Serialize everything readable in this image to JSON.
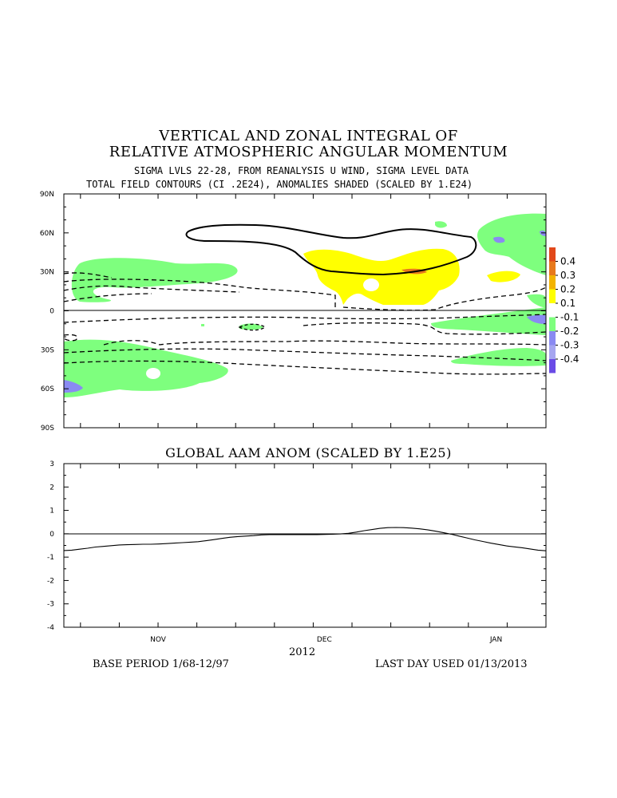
{
  "titles": {
    "line1": "VERTICAL AND ZONAL INTEGRAL OF",
    "line2": "RELATIVE ATMOSPHERIC ANGULAR MOMENTUM",
    "line3": "SIGMA LVLS 22-28, FROM REANALYSIS U WIND, SIGMA LEVEL DATA",
    "line4": "TOTAL FIELD CONTOURS (CI .2E24),  ANOMALIES SHADED (SCALED BY 1.E24)"
  },
  "colors": {
    "pos_04": "#e2481a",
    "pos_03": "#e7791c",
    "pos_02": "#f3b300",
    "pos_01": "#ffff00",
    "neg_01": "#7eff7e",
    "neg_02": "#8a8af2",
    "neg_03": "#a6a6f0",
    "neg_04": "#6a4be6",
    "contour": "#000000"
  },
  "chart_data": [
    {
      "type": "heatmap",
      "title": "VERTICAL AND ZONAL INTEGRAL OF RELATIVE ATMOSPHERIC ANGULAR MOMENTUM",
      "ylabel": "",
      "y_ticks": [
        "90N",
        "60N",
        "30N",
        "0",
        "30S",
        "60S",
        "90S"
      ],
      "x_ticks": [
        "NOV",
        "DEC",
        "JAN"
      ],
      "ylim": [
        -90,
        90
      ],
      "colorbar": {
        "labels": [
          "0.4",
          "0.3",
          "0.2",
          "0.1",
          "-0.1",
          "-0.2",
          "-0.3",
          "-0.4"
        ],
        "levels": [
          0.4,
          0.3,
          0.2,
          0.1,
          -0.1,
          -0.2,
          -0.3,
          -0.4
        ]
      },
      "contour_interval": 0.2
    },
    {
      "type": "line",
      "title": "GLOBAL AAM ANOM (SCALED BY 1.E25)",
      "x_ticks": [
        "NOV",
        "DEC",
        "JAN"
      ],
      "y_ticks": [
        "3",
        "2",
        "1",
        "0",
        "-1",
        "-2",
        "-3",
        "-4"
      ],
      "ylim": [
        -4,
        3
      ],
      "xlabel": "2012",
      "series": [
        {
          "values": [
            -0.72,
            -0.7,
            -0.66,
            -0.62,
            -0.57,
            -0.54,
            -0.51,
            -0.48,
            -0.47,
            -0.46,
            -0.45,
            -0.45,
            -0.44,
            -0.42,
            -0.4,
            -0.38,
            -0.36,
            -0.34,
            -0.3,
            -0.25,
            -0.2,
            -0.15,
            -0.12,
            -0.1,
            -0.08,
            -0.05,
            -0.04,
            -0.04,
            -0.04,
            -0.04,
            -0.04,
            -0.04,
            -0.04,
            -0.03,
            -0.02,
            -0.01,
            0.02,
            0.07,
            0.13,
            0.18,
            0.23,
            0.26,
            0.27,
            0.26,
            0.24,
            0.21,
            0.17,
            0.11,
            0.05,
            -0.02,
            -0.1,
            -0.18,
            -0.26,
            -0.33,
            -0.4,
            -0.46,
            -0.52,
            -0.56,
            -0.6,
            -0.65,
            -0.7,
            -0.73
          ]
        }
      ]
    }
  ],
  "footer": {
    "year": "2012",
    "base_period": "BASE PERIOD  1/68-12/97",
    "last_day": "LAST DAY USED 01/13/2013"
  }
}
